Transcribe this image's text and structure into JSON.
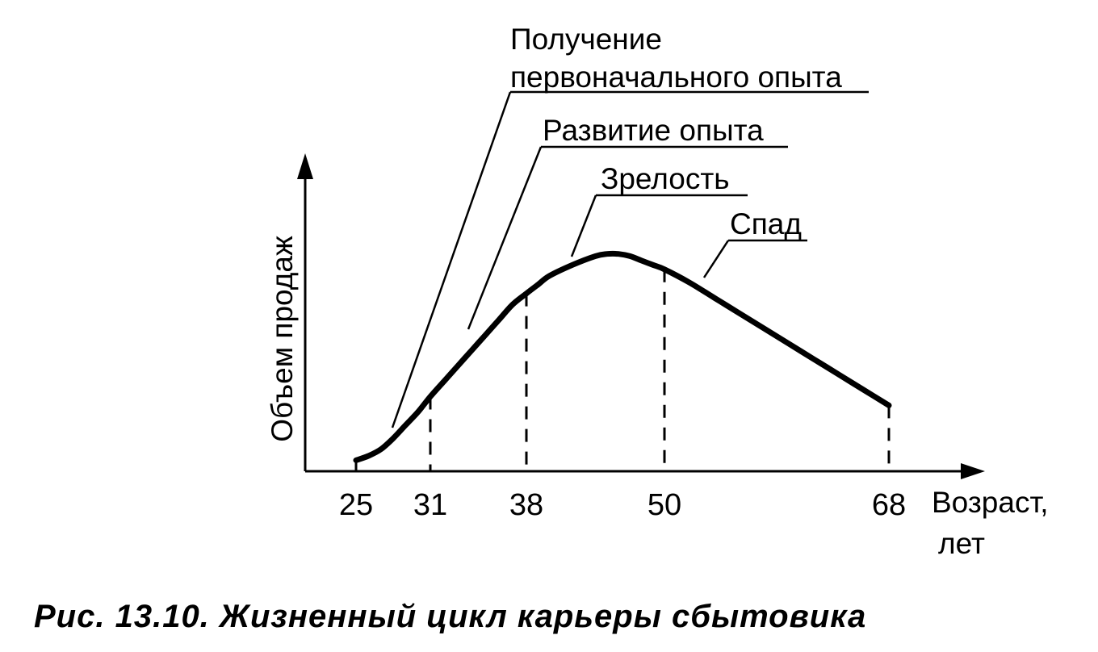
{
  "chart_data": {
    "type": "line",
    "title": "",
    "ylabel": "Объем продаж",
    "xlabel_line1": "Возраст,",
    "xlabel_line2": "лет",
    "x_ticks": [
      25,
      31,
      38,
      50,
      68
    ],
    "series": [
      {
        "x": [
          25,
          26,
          27,
          28,
          29,
          30,
          31,
          32,
          33,
          34,
          35,
          36,
          37,
          38,
          39,
          40,
          42,
          44,
          45,
          46,
          47,
          48,
          49,
          50,
          52,
          54,
          56,
          58,
          60,
          62,
          64,
          66,
          68
        ],
        "y": [
          5,
          7,
          10,
          15,
          21,
          27,
          34,
          41,
          48,
          55,
          62,
          69,
          76,
          81,
          85,
          89,
          94,
          98,
          99,
          99,
          98,
          96,
          94,
          92,
          86,
          79,
          72,
          65,
          58,
          51,
          44,
          37,
          30
        ]
      }
    ],
    "phases": [
      {
        "label": "Получение",
        "label2": "первоначального опыта"
      },
      {
        "label": "Развитие опыта"
      },
      {
        "label": "Зрелость"
      },
      {
        "label": "Спад"
      }
    ],
    "ylim": [
      0,
      100
    ],
    "grid": false,
    "legend": "none"
  },
  "caption": "Рис. 13.10. Жизненный цикл карьеры сбытовика"
}
